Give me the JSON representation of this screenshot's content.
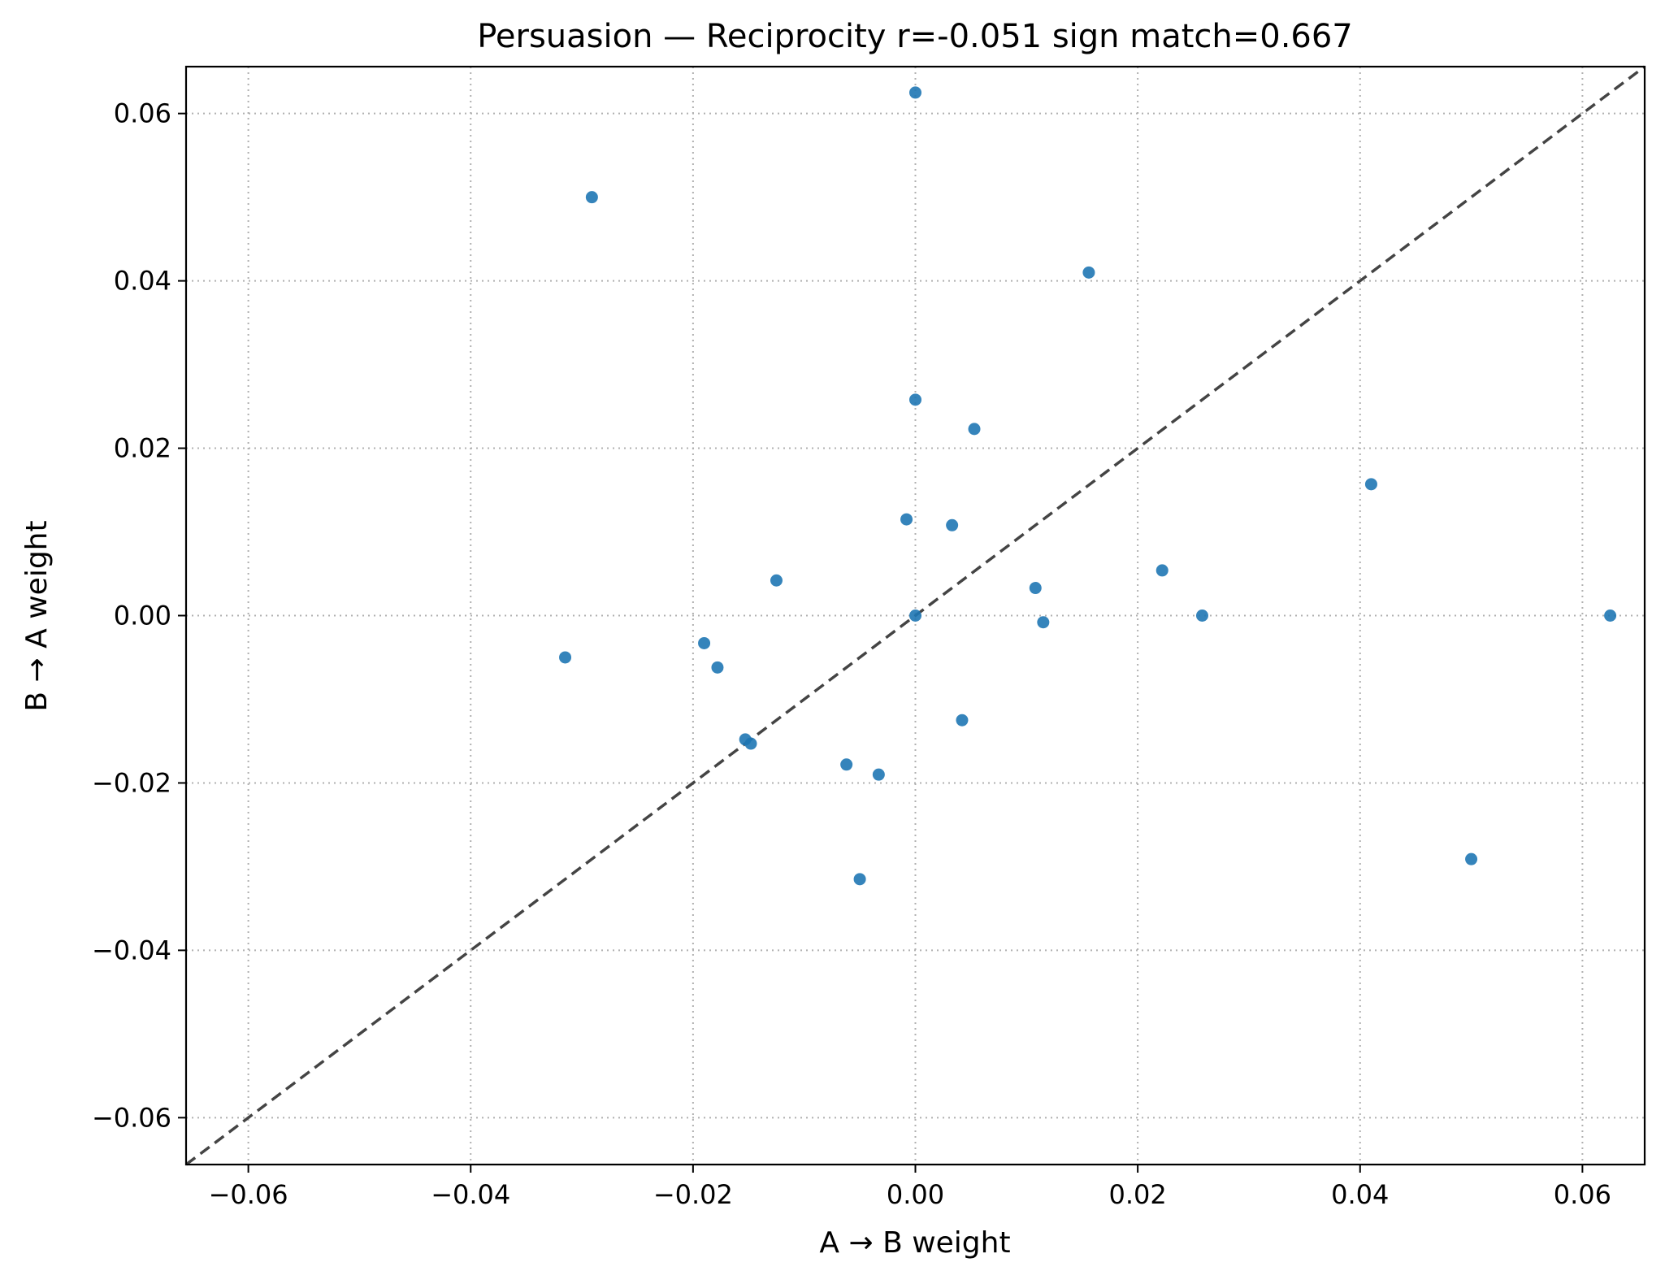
{
  "chart_data": {
    "type": "scatter",
    "title": "Persuasion — Reciprocity r=-0.051  sign match=0.667",
    "xlabel": "A → B weight",
    "ylabel": "B → A weight",
    "xlim": [
      -0.0656,
      0.0656
    ],
    "ylim": [
      -0.0656,
      0.0656
    ],
    "xticks": [
      -0.06,
      -0.04,
      -0.02,
      0.0,
      0.02,
      0.04,
      0.06
    ],
    "yticks": [
      -0.06,
      -0.04,
      -0.02,
      0.0,
      0.02,
      0.04,
      0.06
    ],
    "xtick_labels": [
      "−0.06",
      "−0.04",
      "−0.02",
      "0.00",
      "0.02",
      "0.04",
      "0.06"
    ],
    "ytick_labels": [
      "−0.06",
      "−0.04",
      "−0.02",
      "0.00",
      "0.02",
      "0.04",
      "0.06"
    ],
    "grid": true,
    "reference_line": "y = x",
    "point_color": "#1f77b4",
    "reference_color": "#444444",
    "points": [
      {
        "x": 0.0,
        "y": 0.0625
      },
      {
        "x": -0.0291,
        "y": 0.05
      },
      {
        "x": 0.0156,
        "y": 0.041
      },
      {
        "x": 0.0,
        "y": 0.0258
      },
      {
        "x": 0.0053,
        "y": 0.0223
      },
      {
        "x": 0.041,
        "y": 0.0157
      },
      {
        "x": -0.0008,
        "y": 0.0115
      },
      {
        "x": 0.0033,
        "y": 0.0108
      },
      {
        "x": -0.0125,
        "y": 0.0042
      },
      {
        "x": 0.0108,
        "y": 0.0033
      },
      {
        "x": 0.0222,
        "y": 0.0054
      },
      {
        "x": 0.0258,
        "y": 0.0
      },
      {
        "x": 0.0625,
        "y": 0.0
      },
      {
        "x": 0.0,
        "y": 0.0
      },
      {
        "x": 0.0115,
        "y": -0.0008
      },
      {
        "x": -0.0315,
        "y": -0.005
      },
      {
        "x": -0.019,
        "y": -0.0033
      },
      {
        "x": -0.0178,
        "y": -0.0062
      },
      {
        "x": 0.0042,
        "y": -0.0125
      },
      {
        "x": -0.0153,
        "y": -0.0148
      },
      {
        "x": -0.0148,
        "y": -0.0153
      },
      {
        "x": -0.0062,
        "y": -0.0178
      },
      {
        "x": -0.0033,
        "y": -0.019
      },
      {
        "x": -0.005,
        "y": -0.0315
      },
      {
        "x": 0.05,
        "y": -0.0291
      }
    ]
  }
}
